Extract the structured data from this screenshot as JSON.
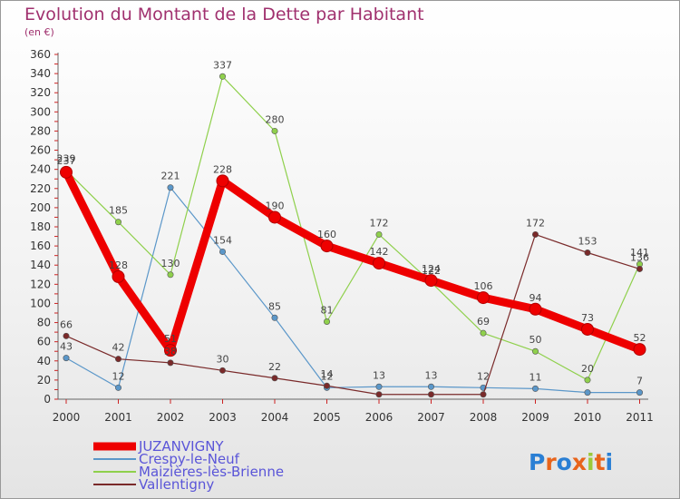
{
  "title": "Evolution du Montant de la Dette par Habitant",
  "unit": "(en €)",
  "logo": "Proxiti",
  "chart_data": {
    "type": "line",
    "x": [
      "2000",
      "2001",
      "2002",
      "2003",
      "2004",
      "2005",
      "2006",
      "2007",
      "2008",
      "2009",
      "2010",
      "2011"
    ],
    "ylim": [
      0,
      360
    ],
    "yticks": [
      0,
      20,
      40,
      60,
      80,
      100,
      120,
      140,
      160,
      180,
      200,
      220,
      240,
      260,
      280,
      300,
      320,
      340,
      360
    ],
    "grid": false,
    "legend_position": "bottom-left",
    "series": [
      {
        "name": "JUZANVIGNY",
        "color": "#ee0000",
        "width": 9,
        "values": [
          237,
          128,
          51,
          228,
          190,
          160,
          142,
          124,
          106,
          94,
          73,
          52
        ],
        "labels": [
          "237",
          "128",
          "51",
          "228",
          "190",
          "160",
          "142",
          "124",
          "106",
          "94",
          "73",
          "52"
        ]
      },
      {
        "name": "Crespy-le-Neuf",
        "color": "#5b97c9",
        "width": 1.2,
        "values": [
          43,
          12,
          221,
          154,
          85,
          12,
          13,
          13,
          12,
          11,
          7,
          7
        ],
        "labels": [
          "43",
          "12",
          "221",
          "154",
          "85",
          "12",
          "13",
          "13",
          "12",
          "11",
          "",
          "7"
        ]
      },
      {
        "name": "Maizières-lès-Brienne",
        "color": "#8fd04c",
        "width": 1.2,
        "values": [
          239,
          185,
          130,
          337,
          280,
          81,
          172,
          122,
          69,
          50,
          20,
          141
        ],
        "labels": [
          "239",
          "185",
          "130",
          "337",
          "280",
          "81",
          "172",
          "122",
          "69",
          "50",
          "20",
          "141"
        ]
      },
      {
        "name": "Vallentigny",
        "color": "#7a2a2a",
        "width": 1.2,
        "values": [
          66,
          42,
          38,
          30,
          22,
          14,
          5,
          5,
          5,
          172,
          153,
          136
        ],
        "labels": [
          "66",
          "42",
          "38",
          "30",
          "22",
          "14",
          "",
          "",
          "",
          "172",
          "153",
          "136"
        ]
      }
    ]
  }
}
